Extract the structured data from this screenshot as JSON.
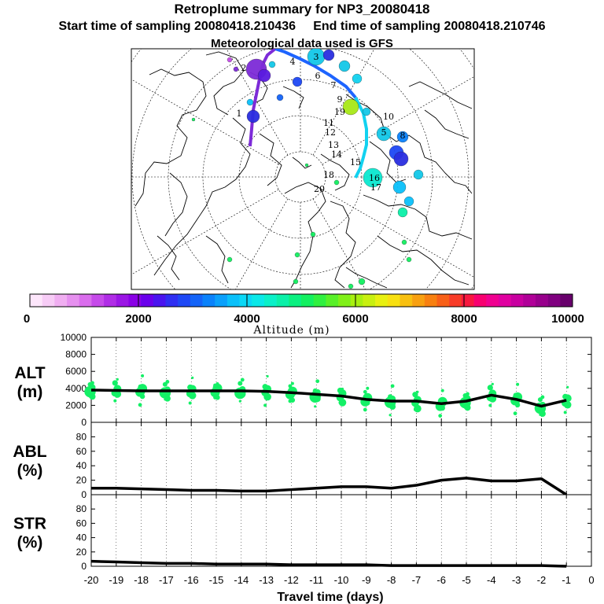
{
  "header": {
    "title": "Retroplume summary for NP3_20080418",
    "start_label": "Start time of sampling 20080418.210436",
    "end_label": "End time of sampling 20080418.210746",
    "met_label": "Meteorological data used is GFS"
  },
  "map": {
    "day_labels": [
      "1",
      "2",
      "3",
      "4",
      "5",
      "6",
      "7",
      "8",
      "9",
      "10",
      "11",
      "12",
      "13",
      "14",
      "15",
      "16",
      "17",
      "18",
      "19",
      "20"
    ],
    "trajectory_colors": [
      "#7d2bd8",
      "#1e64ff",
      "#12d2f0"
    ]
  },
  "colorbar": {
    "tick_labels": [
      "0",
      "2000",
      "4000",
      "6000",
      "8000",
      "10000"
    ],
    "title": "Altitude (m)",
    "colors": [
      "#fde6fb",
      "#f7ccf6",
      "#f0aef1",
      "#e690ef",
      "#da6ded",
      "#c64aea",
      "#b02de6",
      "#9b16e5",
      "#8a00e6",
      "#6a00ec",
      "#4a14ef",
      "#2f2ff2",
      "#1e48f5",
      "#1464f8",
      "#0a82fb",
      "#0aa0fb",
      "#0ac0fa",
      "#0ad8f6",
      "#0ae8e8",
      "#0af0c8",
      "#0af0a8",
      "#0af080",
      "#12f060",
      "#30f040",
      "#58f028",
      "#80f018",
      "#a8f010",
      "#c8f010",
      "#e8f010",
      "#f8e010",
      "#f8c010",
      "#f8a010",
      "#f88010",
      "#f86018",
      "#f83c28",
      "#f81840",
      "#f80070",
      "#f00090",
      "#e000a0",
      "#c800a0",
      "#b00098",
      "#98008c",
      "#800080",
      "#68006c"
    ]
  },
  "chart_data": [
    {
      "type": "line",
      "panel": "ALT",
      "ylabel_line1": "ALT",
      "ylabel_line2": "(m)",
      "ylim": [
        0,
        10000
      ],
      "yticks": [
        "0",
        "2000",
        "4000",
        "6000",
        "8000",
        "10000"
      ],
      "x": [
        -20,
        -19,
        -18,
        -17,
        -16,
        -15,
        -14,
        -13,
        -12,
        -11,
        -10,
        -9,
        -8,
        -7,
        -6,
        -5,
        -4,
        -3,
        -2,
        -1
      ],
      "values": [
        3800,
        3750,
        3700,
        3700,
        3700,
        3700,
        3700,
        3650,
        3500,
        3300,
        3100,
        2700,
        2500,
        2500,
        2200,
        2500,
        3200,
        2700,
        1900,
        2600
      ],
      "spread_color": "#14f066"
    },
    {
      "type": "line",
      "panel": "ABL",
      "ylabel_line1": "ABL",
      "ylabel_line2": "(%)",
      "ylim": [
        0,
        100
      ],
      "yticks": [
        "0",
        "20",
        "40",
        "60",
        "80"
      ],
      "x": [
        -20,
        -19,
        -18,
        -17,
        -16,
        -15,
        -14,
        -13,
        -12,
        -11,
        -10,
        -9,
        -8,
        -7,
        -6,
        -5,
        -4,
        -3,
        -2,
        -1
      ],
      "values": [
        9,
        9,
        8,
        7,
        6,
        6,
        5,
        5,
        7,
        9,
        11,
        11,
        9,
        13,
        20,
        23,
        19,
        19,
        22,
        0
      ]
    },
    {
      "type": "line",
      "panel": "STR",
      "ylabel_line1": "STR",
      "ylabel_line2": "(%)",
      "ylim": [
        0,
        100
      ],
      "yticks": [
        "0",
        "20",
        "40",
        "60",
        "80"
      ],
      "x": [
        -20,
        -19,
        -18,
        -17,
        -16,
        -15,
        -14,
        -13,
        -12,
        -11,
        -10,
        -9,
        -8,
        -7,
        -6,
        -5,
        -4,
        -3,
        -2,
        -1
      ],
      "values": [
        7,
        6,
        5,
        4,
        4,
        3,
        3,
        3,
        2,
        2,
        2,
        2,
        1,
        1,
        1,
        1,
        1,
        1,
        1,
        0
      ],
      "xlabel": "Travel time (days)",
      "xticks": [
        "-20",
        "-19",
        "-18",
        "-17",
        "-16",
        "-15",
        "-14",
        "-13",
        "-12",
        "-11",
        "-10",
        "-9",
        "-8",
        "-7",
        "-6",
        "-5",
        "-4",
        "-3",
        "-2",
        "-1",
        "0"
      ]
    }
  ]
}
